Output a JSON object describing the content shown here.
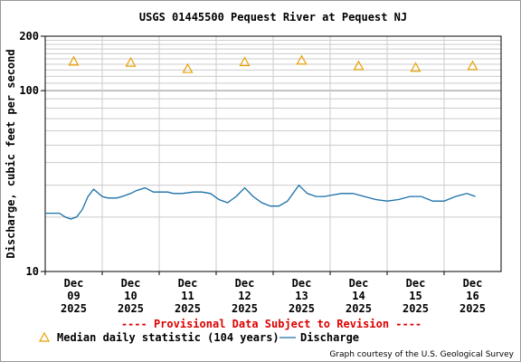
{
  "chart_data": {
    "type": "line",
    "title": "USGS 01445500 Pequest River at Pequest NJ",
    "ylabel": "Discharge, cubic feet per second",
    "yscale": "log",
    "ylim": [
      10,
      200
    ],
    "y_tick_labels": [
      "10",
      "100",
      "200"
    ],
    "x_tick_labels": [
      {
        "day": "Dec",
        "num": "09",
        "year": "2025"
      },
      {
        "day": "Dec",
        "num": "10",
        "year": "2025"
      },
      {
        "day": "Dec",
        "num": "11",
        "year": "2025"
      },
      {
        "day": "Dec",
        "num": "12",
        "year": "2025"
      },
      {
        "day": "Dec",
        "num": "13",
        "year": "2025"
      },
      {
        "day": "Dec",
        "num": "14",
        "year": "2025"
      },
      {
        "day": "Dec",
        "num": "15",
        "year": "2025"
      },
      {
        "day": "Dec",
        "num": "16",
        "year": "2025"
      }
    ],
    "series": [
      {
        "name": "Discharge",
        "color": "#1a6fa8",
        "x_days": [
          0,
          0.25,
          0.35,
          0.45,
          0.55,
          0.65,
          0.75,
          0.85,
          1.0,
          1.1,
          1.25,
          1.35,
          1.5,
          1.6,
          1.75,
          1.9,
          2.0,
          2.15,
          2.25,
          2.4,
          2.6,
          2.75,
          2.9,
          3.05,
          3.2,
          3.35,
          3.5,
          3.65,
          3.8,
          3.95,
          4.1,
          4.25,
          4.45,
          4.6,
          4.75,
          4.9,
          5.05,
          5.2,
          5.4,
          5.6,
          5.8,
          6.0,
          6.2,
          6.4,
          6.6,
          6.8,
          7.0,
          7.2,
          7.4,
          7.55
        ],
        "values": [
          21,
          21,
          20,
          19.5,
          20,
          22,
          26,
          28.5,
          26,
          25.5,
          25.5,
          26,
          27,
          28,
          29,
          27.5,
          27.5,
          27.5,
          27,
          27,
          27.5,
          27.5,
          27,
          25,
          24,
          26,
          29,
          26,
          24,
          23,
          23,
          24.5,
          30,
          27,
          26,
          26,
          26.5,
          27,
          27,
          26,
          25,
          24.5,
          25,
          26,
          26,
          24.5,
          24.5,
          26,
          27,
          26
        ]
      },
      {
        "name": "Median daily statistic (104 years)",
        "color": "#e8a000",
        "type": "scatter",
        "x_days": [
          0.5,
          1.5,
          2.5,
          3.5,
          4.5,
          5.5,
          6.5,
          7.5
        ],
        "values": [
          145,
          143,
          132,
          144,
          147,
          137,
          134,
          137
        ]
      }
    ],
    "grid": true,
    "annotation": "---- Provisional Data Subject to Revision ----",
    "legend": [
      {
        "label": "Median daily statistic (104 years)"
      },
      {
        "label": "Discharge"
      }
    ],
    "courtesy": "Graph courtesy of the U.S. Geological Survey"
  }
}
